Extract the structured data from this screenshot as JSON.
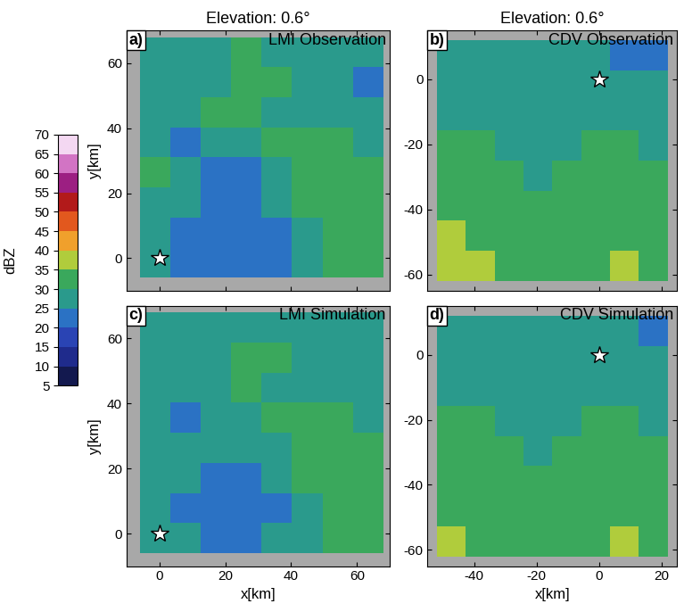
{
  "colorbar": {
    "label": "dBZ",
    "levels": [
      5,
      10,
      15,
      20,
      25,
      30,
      35,
      40,
      45,
      50,
      55,
      60,
      65,
      70
    ],
    "ticks": [
      5,
      10,
      15,
      20,
      25,
      30,
      35,
      40,
      45,
      50,
      55,
      60,
      65,
      70
    ],
    "colors": [
      "#13194f",
      "#1f2b8c",
      "#2a44b4",
      "#2b72c4",
      "#2a9a8c",
      "#3aa85c",
      "#b0cc3c",
      "#f0a02c",
      "#e2581e",
      "#b21a1a",
      "#9c1f82",
      "#d274c4",
      "#f4d8f2"
    ]
  },
  "chart_data": [
    {
      "type": "heatmap",
      "title": "Elevation: 0.6°",
      "panel_label": "a)",
      "subtitle": "LMI Observation",
      "ylabel": "y[km]",
      "tick_labels": "y",
      "xlim": [
        -10,
        70
      ],
      "ylim": [
        -10,
        70
      ],
      "xticks": [
        0,
        20,
        40,
        60
      ],
      "yticks": [
        0,
        20,
        40,
        60
      ],
      "cell_x": [
        -6,
        68
      ],
      "cell_y": [
        -6,
        68
      ],
      "radar_site": {
        "x": 0,
        "y": 0
      },
      "marker": "*",
      "cells": [
        [
          28,
          24,
          22,
          22,
          24,
          27,
          32,
          33
        ],
        [
          27,
          22,
          20,
          21,
          23,
          28,
          32,
          34
        ],
        [
          29,
          25,
          23,
          22,
          25,
          30,
          33,
          34
        ],
        [
          30,
          27,
          24,
          24,
          27,
          31,
          33,
          33
        ],
        [
          27,
          23,
          25,
          28,
          30,
          31,
          30,
          29
        ],
        [
          29,
          28,
          30,
          30,
          29,
          28,
          27,
          26
        ],
        [
          28,
          27,
          29,
          31,
          30,
          28,
          26,
          24
        ],
        [
          27,
          26,
          28,
          30,
          29,
          27,
          25,
          25
        ]
      ]
    },
    {
      "type": "heatmap",
      "title": "Elevation: 0.6°",
      "panel_label": "b)",
      "subtitle": "CDV Observation",
      "tick_labels": "y",
      "xlim": [
        -55,
        25
      ],
      "ylim": [
        -65,
        15
      ],
      "xticks": [
        -40,
        -20,
        0,
        20
      ],
      "yticks": [
        -60,
        -40,
        -20,
        0
      ],
      "cell_x": [
        -52,
        22
      ],
      "cell_y": [
        -62,
        12
      ],
      "radar_site": {
        "x": 0,
        "y": 0
      },
      "marker": "*",
      "cells": [
        [
          36,
          35,
          33,
          32,
          33,
          34,
          35,
          34
        ],
        [
          35,
          34,
          32,
          31,
          32,
          33,
          34,
          33
        ],
        [
          34,
          33,
          31,
          30,
          31,
          32,
          32,
          31
        ],
        [
          33,
          32,
          30,
          29,
          30,
          31,
          31,
          30
        ],
        [
          31,
          30,
          29,
          28,
          29,
          30,
          30,
          29
        ],
        [
          29,
          28,
          28,
          27,
          28,
          29,
          29,
          28
        ],
        [
          28,
          27,
          26,
          27,
          27,
          28,
          26,
          25
        ],
        [
          27,
          26,
          25,
          26,
          28,
          28,
          24,
          23
        ]
      ]
    },
    {
      "type": "heatmap",
      "panel_label": "c)",
      "subtitle": "LMI Simulation",
      "xlabel": "x[km]",
      "ylabel": "y[km]",
      "tick_labels": true,
      "xlim": [
        -10,
        70
      ],
      "ylim": [
        -10,
        70
      ],
      "xticks": [
        0,
        20,
        40,
        60
      ],
      "yticks": [
        0,
        20,
        40,
        60
      ],
      "cell_x": [
        -6,
        68
      ],
      "cell_y": [
        -6,
        68
      ],
      "radar_site": {
        "x": 0,
        "y": 0
      },
      "marker": "*",
      "cells": [
        [
          28,
          25,
          23,
          23,
          25,
          28,
          32,
          33
        ],
        [
          27,
          23,
          21,
          22,
          24,
          28,
          32,
          33
        ],
        [
          29,
          25,
          23,
          23,
          26,
          30,
          33,
          34
        ],
        [
          29,
          27,
          25,
          25,
          27,
          30,
          32,
          33
        ],
        [
          27,
          24,
          25,
          28,
          30,
          30,
          30,
          29
        ],
        [
          29,
          28,
          29,
          30,
          29,
          28,
          27,
          26
        ],
        [
          28,
          27,
          29,
          30,
          30,
          28,
          27,
          25
        ],
        [
          27,
          26,
          28,
          29,
          29,
          27,
          26,
          25
        ]
      ]
    },
    {
      "type": "heatmap",
      "panel_label": "d)",
      "subtitle": "CDV Simulation",
      "xlabel": "x[km]",
      "tick_labels": true,
      "xlim": [
        -55,
        25
      ],
      "ylim": [
        -65,
        15
      ],
      "xticks": [
        -40,
        -20,
        0,
        20
      ],
      "yticks": [
        -60,
        -40,
        -20,
        0
      ],
      "cell_x": [
        -52,
        22
      ],
      "cell_y": [
        -62,
        12
      ],
      "radar_site": {
        "x": 0,
        "y": 0
      },
      "marker": "*",
      "cells": [
        [
          35,
          34,
          33,
          32,
          33,
          34,
          35,
          34
        ],
        [
          34,
          33,
          32,
          31,
          32,
          33,
          34,
          33
        ],
        [
          33,
          32,
          31,
          30,
          31,
          32,
          32,
          31
        ],
        [
          32,
          31,
          30,
          29,
          30,
          31,
          31,
          30
        ],
        [
          30,
          30,
          29,
          28,
          29,
          30,
          30,
          29
        ],
        [
          29,
          28,
          28,
          28,
          28,
          29,
          29,
          28
        ],
        [
          28,
          27,
          27,
          27,
          28,
          28,
          27,
          26
        ],
        [
          27,
          27,
          26,
          26,
          28,
          28,
          25,
          24
        ]
      ]
    }
  ]
}
